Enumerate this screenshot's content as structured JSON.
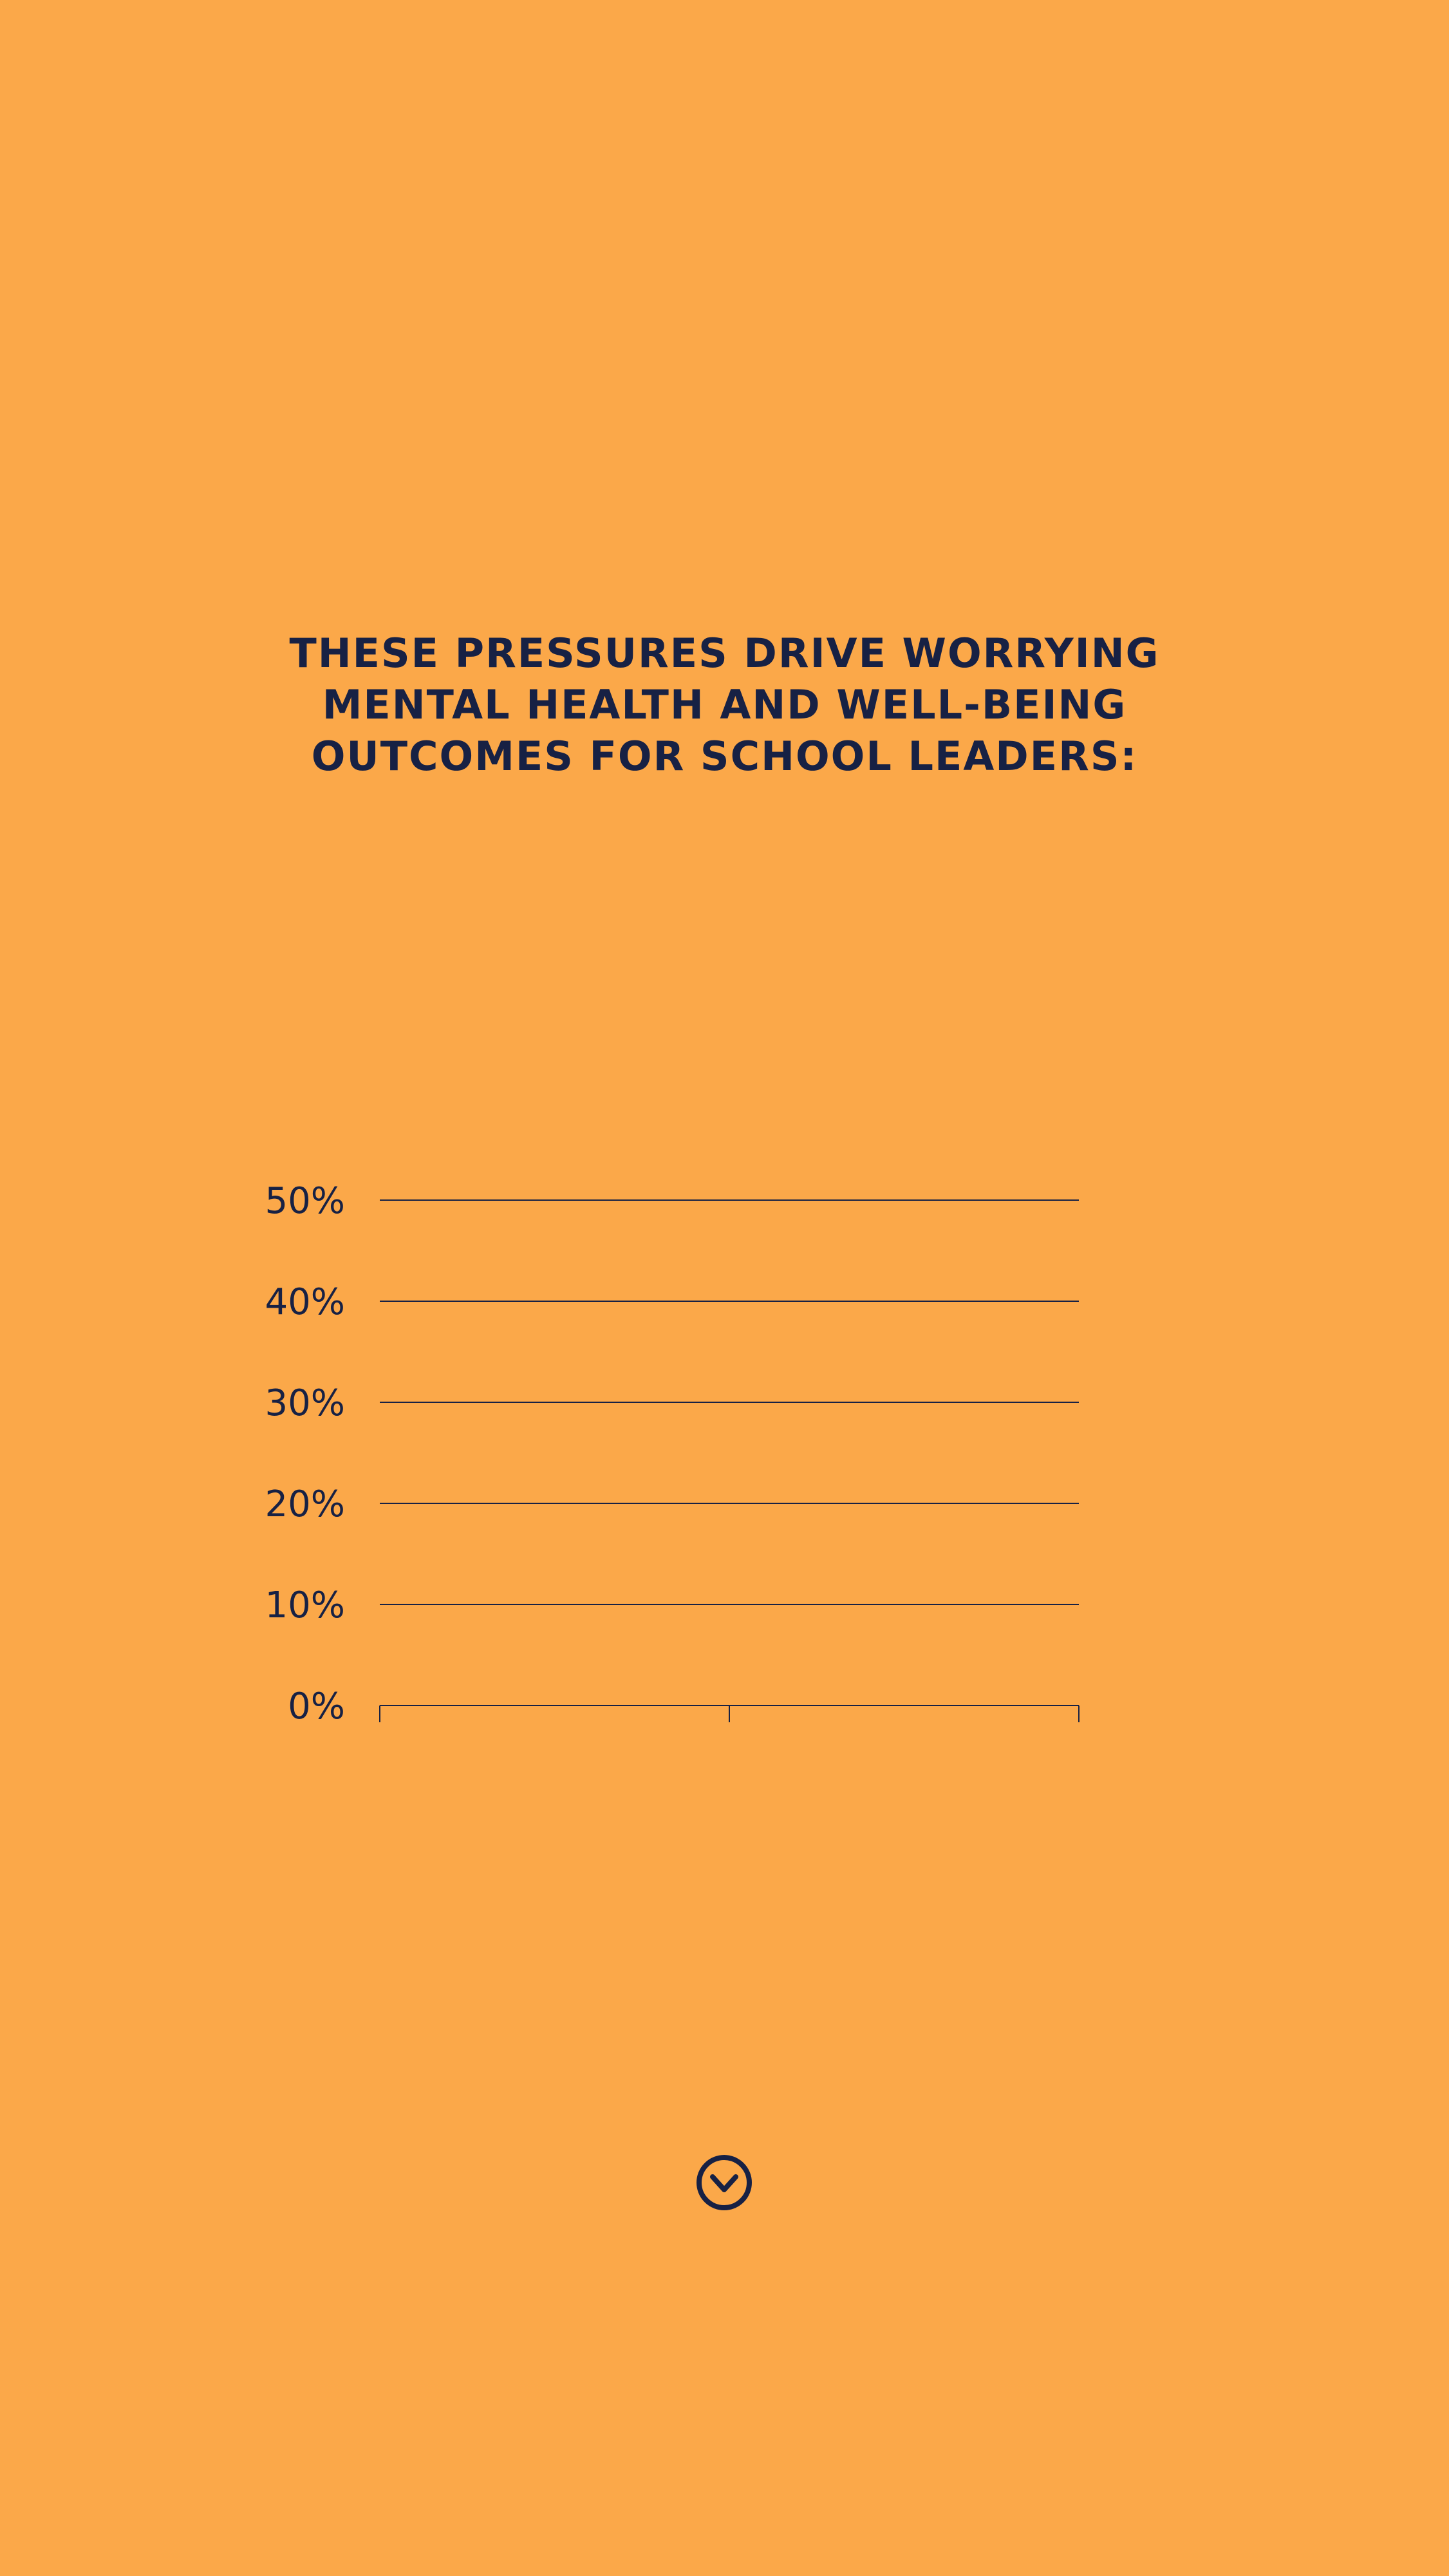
{
  "headline": {
    "lines": [
      "THESE PRESSURES DRIVE WORRYING",
      "MENTAL HEALTH AND WELL-BEING",
      "OUTCOMES FOR SCHOOL LEADERS:"
    ]
  },
  "colors": {
    "background": "#FBA849",
    "ink": "#172144"
  },
  "chart_data": {
    "type": "bar",
    "title": "",
    "xlabel": "",
    "ylabel": "",
    "categories": [
      "",
      ""
    ],
    "series": [],
    "ylim": [
      0,
      50
    ],
    "y_ticks": [
      "0%",
      "10%",
      "20%",
      "30%",
      "40%",
      "50%"
    ],
    "grid": true,
    "legend": "none"
  },
  "scroll": {
    "icon": "chevron-down-circle-icon"
  }
}
